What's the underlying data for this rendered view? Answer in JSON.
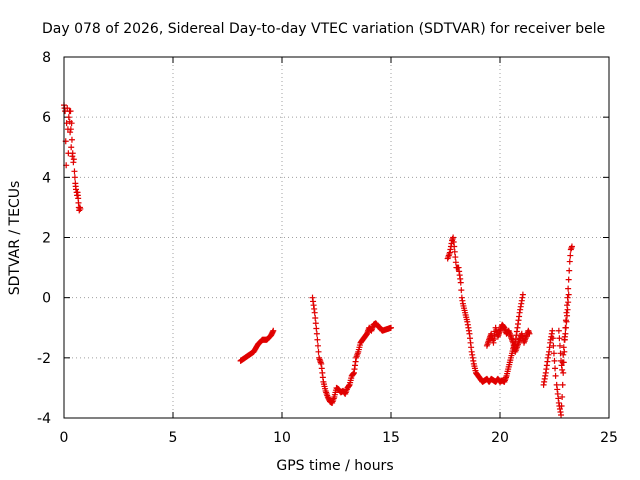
{
  "chart_data": {
    "type": "scatter",
    "title": "Day 078 of 2026, Sidereal Day-to-day VTEC variation (SDTVAR) for receiver bele",
    "xlabel": "GPS time / hours",
    "ylabel": "SDTVAR / TECUs",
    "xlim": [
      0,
      25
    ],
    "ylim": [
      -4,
      8
    ],
    "x_ticks": [
      0,
      5,
      10,
      15,
      20,
      25
    ],
    "x_tick_labels": [
      "0",
      "5",
      "10",
      "15",
      "20",
      "25"
    ],
    "y_ticks": [
      -4,
      -2,
      0,
      2,
      4,
      6,
      8
    ],
    "y_tick_labels": [
      "-4",
      "-2",
      "0",
      "2",
      "4",
      "6",
      "8"
    ],
    "grid": true,
    "marker": "+",
    "series": [
      {
        "name": "SDTVAR",
        "color": "#e00000",
        "segments": [
          [
            [
              0.0,
              6.4
            ],
            [
              0.05,
              6.2
            ],
            [
              0.08,
              5.2
            ],
            [
              0.1,
              4.4
            ],
            [
              0.12,
              5.8
            ],
            [
              0.15,
              6.3
            ],
            [
              0.18,
              5.6
            ],
            [
              0.2,
              4.8
            ],
            [
              0.22,
              6.0
            ],
            [
              0.25,
              6.2
            ],
            [
              0.28,
              5.5
            ],
            [
              0.3,
              6.2
            ],
            [
              0.33,
              5.0
            ],
            [
              0.35,
              5.8
            ],
            [
              0.38,
              4.7
            ],
            [
              0.4,
              4.8
            ],
            [
              0.43,
              4.5
            ],
            [
              0.45,
              4.6
            ],
            [
              0.48,
              4.2
            ],
            [
              0.5,
              4.0
            ],
            [
              0.52,
              3.8
            ],
            [
              0.55,
              3.6
            ],
            [
              0.58,
              3.5
            ],
            [
              0.6,
              3.4
            ],
            [
              0.62,
              3.5
            ],
            [
              0.65,
              3.3
            ],
            [
              0.68,
              3.0
            ],
            [
              0.7,
              2.9
            ],
            [
              0.73,
              3.0
            ],
            [
              0.75,
              2.95
            ]
          ],
          [
            [
              8.1,
              -2.1
            ],
            [
              8.3,
              -2.0
            ],
            [
              8.5,
              -1.9
            ],
            [
              8.7,
              -1.8
            ],
            [
              8.9,
              -1.55
            ],
            [
              9.1,
              -1.4
            ],
            [
              9.3,
              -1.4
            ],
            [
              9.5,
              -1.25
            ],
            [
              9.6,
              -1.1
            ]
          ],
          [
            [
              11.4,
              0.0
            ],
            [
              11.5,
              -0.5
            ],
            [
              11.6,
              -1.2
            ],
            [
              11.7,
              -2.0
            ],
            [
              11.8,
              -2.2
            ],
            [
              11.9,
              -2.8
            ],
            [
              12.0,
              -3.1
            ],
            [
              12.1,
              -3.3
            ],
            [
              12.2,
              -3.45
            ],
            [
              12.3,
              -3.5
            ],
            [
              12.4,
              -3.3
            ],
            [
              12.5,
              -3.0
            ],
            [
              12.6,
              -3.05
            ],
            [
              12.7,
              -3.15
            ],
            [
              12.8,
              -3.1
            ],
            [
              12.9,
              -3.2
            ],
            [
              13.0,
              -3.0
            ],
            [
              13.1,
              -2.9
            ],
            [
              13.2,
              -2.6
            ],
            [
              13.3,
              -2.5
            ],
            [
              13.4,
              -2.0
            ],
            [
              13.5,
              -1.8
            ],
            [
              13.6,
              -1.5
            ],
            [
              13.7,
              -1.4
            ],
            [
              13.8,
              -1.3
            ],
            [
              13.9,
              -1.2
            ],
            [
              14.0,
              -1.0
            ],
            [
              14.1,
              -1.1
            ],
            [
              14.2,
              -0.9
            ],
            [
              14.3,
              -0.85
            ],
            [
              14.4,
              -0.95
            ],
            [
              14.5,
              -1.0
            ],
            [
              14.6,
              -1.1
            ],
            [
              14.8,
              -1.05
            ],
            [
              15.0,
              -1.0
            ]
          ],
          [
            [
              17.6,
              1.3
            ],
            [
              17.7,
              1.5
            ],
            [
              17.8,
              1.9
            ],
            [
              17.85,
              2.0
            ],
            [
              17.9,
              1.7
            ],
            [
              18.0,
              1.0
            ],
            [
              18.1,
              1.0
            ],
            [
              18.2,
              0.5
            ],
            [
              18.25,
              0.0
            ],
            [
              18.3,
              -0.2
            ],
            [
              18.4,
              -0.5
            ],
            [
              18.5,
              -0.8
            ],
            [
              18.6,
              -1.2
            ],
            [
              18.7,
              -1.8
            ],
            [
              18.8,
              -2.2
            ],
            [
              18.9,
              -2.5
            ],
            [
              19.0,
              -2.6
            ],
            [
              19.1,
              -2.7
            ],
            [
              19.2,
              -2.8
            ],
            [
              19.3,
              -2.75
            ],
            [
              19.4,
              -2.7
            ],
            [
              19.5,
              -2.8
            ],
            [
              19.6,
              -2.7
            ],
            [
              19.7,
              -2.75
            ],
            [
              19.8,
              -2.8
            ],
            [
              19.9,
              -2.7
            ],
            [
              20.0,
              -2.8
            ],
            [
              20.1,
              -2.75
            ],
            [
              20.2,
              -2.8
            ],
            [
              20.3,
              -2.6
            ],
            [
              20.4,
              -2.3
            ],
            [
              20.5,
              -2.0
            ],
            [
              20.6,
              -1.7
            ],
            [
              20.7,
              -1.5
            ],
            [
              20.8,
              -1.0
            ],
            [
              20.9,
              -0.5
            ],
            [
              21.0,
              -0.1
            ],
            [
              21.05,
              0.1
            ]
          ],
          [
            [
              19.4,
              -1.6
            ],
            [
              19.5,
              -1.4
            ],
            [
              19.6,
              -1.2
            ],
            [
              19.7,
              -1.5
            ],
            [
              19.8,
              -1.0
            ],
            [
              19.9,
              -1.3
            ],
            [
              20.0,
              -1.1
            ],
            [
              20.1,
              -0.9
            ],
            [
              20.2,
              -1.0
            ],
            [
              20.3,
              -1.2
            ],
            [
              20.4,
              -1.1
            ],
            [
              20.5,
              -1.3
            ],
            [
              20.6,
              -1.5
            ],
            [
              20.7,
              -1.8
            ],
            [
              20.8,
              -1.6
            ],
            [
              20.9,
              -1.4
            ],
            [
              21.0,
              -1.2
            ],
            [
              21.1,
              -1.5
            ],
            [
              21.2,
              -1.3
            ],
            [
              21.3,
              -1.1
            ],
            [
              21.35,
              -1.2
            ]
          ],
          [
            [
              22.0,
              -2.9
            ],
            [
              22.1,
              -2.5
            ],
            [
              22.2,
              -2.0
            ],
            [
              22.25,
              -1.8
            ],
            [
              22.3,
              -1.5
            ],
            [
              22.35,
              -1.3
            ],
            [
              22.4,
              -1.1
            ],
            [
              22.45,
              -1.6
            ],
            [
              22.5,
              -2.1
            ],
            [
              22.55,
              -2.6
            ]
          ],
          [
            [
              22.6,
              -2.9
            ],
            [
              22.65,
              -3.2
            ],
            [
              22.7,
              -3.5
            ],
            [
              22.75,
              -3.7
            ],
            [
              22.8,
              -3.9
            ],
            [
              22.85,
              -3.3
            ],
            [
              22.9,
              -2.5
            ],
            [
              22.95,
              -1.8
            ],
            [
              23.0,
              -1.0
            ],
            [
              23.05,
              -0.5
            ],
            [
              23.1,
              0.0
            ],
            [
              23.15,
              0.6
            ],
            [
              23.2,
              1.2
            ],
            [
              23.25,
              1.6
            ],
            [
              23.3,
              1.7
            ]
          ],
          [
            [
              22.7,
              -1.1
            ],
            [
              22.75,
              -1.6
            ],
            [
              22.8,
              -2.1
            ],
            [
              22.85,
              -2.4
            ],
            [
              22.9,
              -1.9
            ],
            [
              22.95,
              -1.4
            ],
            [
              23.0,
              -1.2
            ],
            [
              23.05,
              -0.8
            ],
            [
              23.1,
              -0.4
            ],
            [
              23.15,
              0.1
            ]
          ]
        ]
      }
    ]
  }
}
